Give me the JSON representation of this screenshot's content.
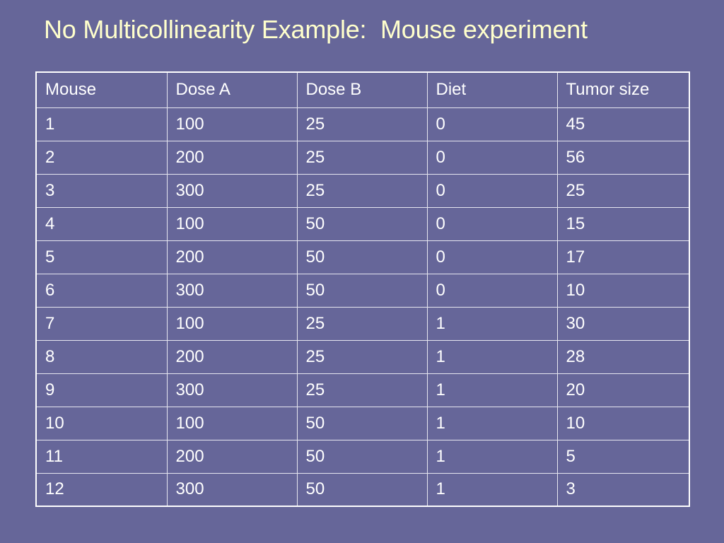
{
  "slide": {
    "title": "No Multicollinearity Example:  Mouse experiment"
  },
  "colors": {
    "background": "#666699",
    "title": "#ffffcc",
    "text": "#ffffff",
    "grid": "#e6e6f0"
  },
  "table": {
    "headers": [
      "Mouse",
      "Dose A",
      "Dose B",
      "Diet",
      "Tumor size"
    ],
    "rows": [
      [
        "1",
        "100",
        "25",
        "0",
        "45"
      ],
      [
        "2",
        "200",
        "25",
        "0",
        "56"
      ],
      [
        "3",
        "300",
        "25",
        "0",
        "25"
      ],
      [
        "4",
        "100",
        "50",
        "0",
        "15"
      ],
      [
        "5",
        "200",
        "50",
        "0",
        "17"
      ],
      [
        "6",
        "300",
        "50",
        "0",
        "10"
      ],
      [
        "7",
        "100",
        "25",
        "1",
        "30"
      ],
      [
        "8",
        "200",
        "25",
        "1",
        "28"
      ],
      [
        "9",
        "300",
        "25",
        "1",
        "20"
      ],
      [
        "10",
        "100",
        "50",
        "1",
        "10"
      ],
      [
        "11",
        "200",
        "50",
        "1",
        "5"
      ],
      [
        "12",
        "300",
        "50",
        "1",
        "3"
      ]
    ]
  }
}
